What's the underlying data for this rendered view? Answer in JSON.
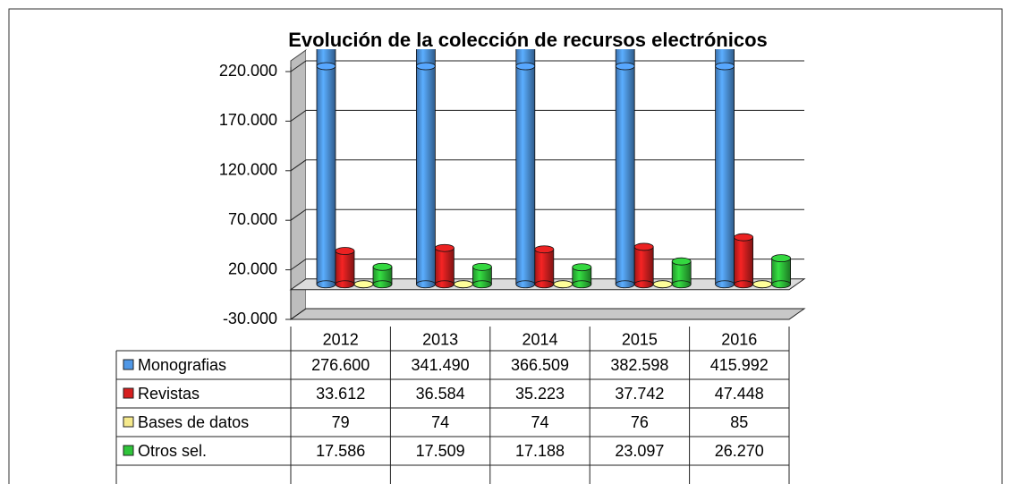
{
  "chart_data": {
    "type": "bar3d",
    "title": "Evolución de la colección de recursos electrónicos",
    "categories": [
      "2012",
      "2013",
      "2014",
      "2015",
      "2016"
    ],
    "series": [
      {
        "name": "Monografias",
        "color": "#4f97e6",
        "values": [
          276600,
          341490,
          366509,
          382598,
          415992
        ],
        "value_labels": [
          "276.600",
          "341.490",
          "366.509",
          "382.598",
          "415.992"
        ]
      },
      {
        "name": "Revistas",
        "color": "#d61f1f",
        "values": [
          33612,
          36584,
          35223,
          37742,
          47448
        ],
        "value_labels": [
          "33.612",
          "36.584",
          "35.223",
          "37.742",
          "47.448"
        ]
      },
      {
        "name": "Bases de datos",
        "color": "#f5e98c",
        "values": [
          79,
          74,
          74,
          76,
          85
        ],
        "value_labels": [
          "79",
          "74",
          "74",
          "76",
          "85"
        ]
      },
      {
        "name": "Otros sel.",
        "color": "#2fc43a",
        "values": [
          17586,
          17509,
          17188,
          23097,
          26270
        ],
        "value_labels": [
          "17.586",
          "17.509",
          "17.188",
          "23.097",
          "26.270"
        ]
      }
    ],
    "ylim": [
      -30000,
      220000
    ],
    "yticks": [
      {
        "value": -30000,
        "label": "-30.000"
      },
      {
        "value": 20000,
        "label": "20.000"
      },
      {
        "value": 70000,
        "label": "70.000"
      },
      {
        "value": 120000,
        "label": "120.000"
      },
      {
        "value": 170000,
        "label": "170.000"
      },
      {
        "value": 220000,
        "label": "220.000"
      }
    ],
    "grid": true
  }
}
